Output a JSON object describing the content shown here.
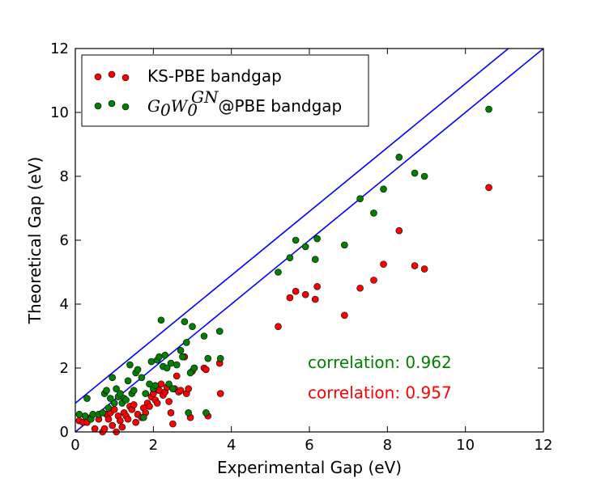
{
  "chart_data": {
    "type": "scatter",
    "xlabel": "Experimental Gap (eV)",
    "ylabel": "Theoretical Gap (eV)",
    "xlim": [
      0,
      12
    ],
    "ylim": [
      0,
      12
    ],
    "xticks": [
      "0",
      "2",
      "4",
      "6",
      "8",
      "10",
      "12"
    ],
    "yticks": [
      "0",
      "2",
      "4",
      "6",
      "8",
      "10",
      "12"
    ],
    "legend_position": "top-left",
    "series": [
      {
        "name": "KS-PBE bandgap",
        "color": "#ff0000",
        "points": [
          [
            0.1,
            0.35
          ],
          [
            0.2,
            0.3
          ],
          [
            0.3,
            0.3
          ],
          [
            0.4,
            0.45
          ],
          [
            0.5,
            0.1
          ],
          [
            0.6,
            0.4
          ],
          [
            0.7,
            0.0
          ],
          [
            0.75,
            0.1
          ],
          [
            0.8,
            0.55
          ],
          [
            0.85,
            0.4
          ],
          [
            0.9,
            0.6
          ],
          [
            0.95,
            0.2
          ],
          [
            1.0,
            0.7
          ],
          [
            1.05,
            0.0
          ],
          [
            1.1,
            0.5
          ],
          [
            1.15,
            0.35
          ],
          [
            1.2,
            0.15
          ],
          [
            1.25,
            0.6
          ],
          [
            1.3,
            0.5
          ],
          [
            1.35,
            0.4
          ],
          [
            1.4,
            0.8
          ],
          [
            1.45,
            0.7
          ],
          [
            1.5,
            0.85
          ],
          [
            1.55,
            0.3
          ],
          [
            1.6,
            0.55
          ],
          [
            1.7,
            0.45
          ],
          [
            1.75,
            0.75
          ],
          [
            1.8,
            0.6
          ],
          [
            1.85,
            0.9
          ],
          [
            1.9,
            0.8
          ],
          [
            1.95,
            1.1
          ],
          [
            2.0,
            1.2
          ],
          [
            2.05,
            1.0
          ],
          [
            2.1,
            0.9
          ],
          [
            2.15,
            1.3
          ],
          [
            2.2,
            1.5
          ],
          [
            2.25,
            1.15
          ],
          [
            2.3,
            1.25
          ],
          [
            2.35,
            1.4
          ],
          [
            2.4,
            0.95
          ],
          [
            2.45,
            0.6
          ],
          [
            2.5,
            0.25
          ],
          [
            2.55,
            1.35
          ],
          [
            2.6,
            1.75
          ],
          [
            2.65,
            1.25
          ],
          [
            2.7,
            1.3
          ],
          [
            2.8,
            2.35
          ],
          [
            2.85,
            1.2
          ],
          [
            2.9,
            1.35
          ],
          [
            2.95,
            0.45
          ],
          [
            3.0,
            1.9
          ],
          [
            3.05,
            2.0
          ],
          [
            3.3,
            2.0
          ],
          [
            3.35,
            1.95
          ],
          [
            3.4,
            0.5
          ],
          [
            3.7,
            2.15
          ],
          [
            3.72,
            1.2
          ],
          [
            5.2,
            3.3
          ],
          [
            5.5,
            4.2
          ],
          [
            5.65,
            4.4
          ],
          [
            5.9,
            4.3
          ],
          [
            6.15,
            4.15
          ],
          [
            6.2,
            4.55
          ],
          [
            6.9,
            3.65
          ],
          [
            7.3,
            4.5
          ],
          [
            7.65,
            4.75
          ],
          [
            7.9,
            5.25
          ],
          [
            8.3,
            6.3
          ],
          [
            8.7,
            5.2
          ],
          [
            8.95,
            5.1
          ],
          [
            10.6,
            7.65
          ]
        ]
      },
      {
        "name": "G0W0^GN@PBE bandgap",
        "color": "#008000",
        "points": [
          [
            0.1,
            0.55
          ],
          [
            0.25,
            0.5
          ],
          [
            0.3,
            1.05
          ],
          [
            0.4,
            0.4
          ],
          [
            0.45,
            0.55
          ],
          [
            0.6,
            0.55
          ],
          [
            0.7,
            0.6
          ],
          [
            0.75,
            1.2
          ],
          [
            0.8,
            1.3
          ],
          [
            0.85,
            0.75
          ],
          [
            0.9,
            1.05
          ],
          [
            0.95,
            1.7
          ],
          [
            1.0,
            0.9
          ],
          [
            1.05,
            1.35
          ],
          [
            1.1,
            1.1
          ],
          [
            1.15,
            1.2
          ],
          [
            1.2,
            0.9
          ],
          [
            1.25,
            1.05
          ],
          [
            1.3,
            1.0
          ],
          [
            1.35,
            1.6
          ],
          [
            1.4,
            2.1
          ],
          [
            1.45,
            1.2
          ],
          [
            1.5,
            1.3
          ],
          [
            1.55,
            1.85
          ],
          [
            1.6,
            1.95
          ],
          [
            1.7,
            1.7
          ],
          [
            1.75,
            0.45
          ],
          [
            1.8,
            1.2
          ],
          [
            1.9,
            1.5
          ],
          [
            1.95,
            2.2
          ],
          [
            2.0,
            1.35
          ],
          [
            2.05,
            1.45
          ],
          [
            2.1,
            2.25
          ],
          [
            2.15,
            2.35
          ],
          [
            2.2,
            3.5
          ],
          [
            2.25,
            2.05
          ],
          [
            2.3,
            2.4
          ],
          [
            2.35,
            2.0
          ],
          [
            2.4,
            1.5
          ],
          [
            2.45,
            2.15
          ],
          [
            2.5,
            1.35
          ],
          [
            2.6,
            2.1
          ],
          [
            2.7,
            2.55
          ],
          [
            2.75,
            2.35
          ],
          [
            2.8,
            3.45
          ],
          [
            2.85,
            2.8
          ],
          [
            2.9,
            0.6
          ],
          [
            2.95,
            1.85
          ],
          [
            3.0,
            3.3
          ],
          [
            3.05,
            2.0
          ],
          [
            3.3,
            3.0
          ],
          [
            3.35,
            0.6
          ],
          [
            3.4,
            2.3
          ],
          [
            3.7,
            3.15
          ],
          [
            3.72,
            2.3
          ],
          [
            5.2,
            5.0
          ],
          [
            5.5,
            5.45
          ],
          [
            5.65,
            6.0
          ],
          [
            5.9,
            5.8
          ],
          [
            6.15,
            5.4
          ],
          [
            6.2,
            6.05
          ],
          [
            6.9,
            5.85
          ],
          [
            7.3,
            7.3
          ],
          [
            7.65,
            6.85
          ],
          [
            7.9,
            7.6
          ],
          [
            8.3,
            8.6
          ],
          [
            8.7,
            8.1
          ],
          [
            8.95,
            8.0
          ],
          [
            10.6,
            10.1
          ]
        ]
      }
    ],
    "reference_lines": [
      {
        "name": "y = x",
        "color": "#0000ff",
        "intercept": 0,
        "slope": 1
      },
      {
        "name": "y = x + 0.9",
        "color": "#0000ff",
        "intercept": 0.9,
        "slope": 1
      }
    ],
    "annotations": [
      {
        "text": "correlation: 0.962",
        "color": "#008000",
        "x": 6.0,
        "y": 2.0
      },
      {
        "text": "correlation: 0.957",
        "color": "#ff0000",
        "x": 6.0,
        "y": 1.05
      }
    ],
    "legend": {
      "ks_label": "KS-PBE bandgap",
      "gw_G": "G",
      "gw_sub0a": "0",
      "gw_W": "W",
      "gw_sub0b": "0",
      "gw_sup": "GN",
      "gw_suffix": "@PBE bandgap"
    }
  }
}
